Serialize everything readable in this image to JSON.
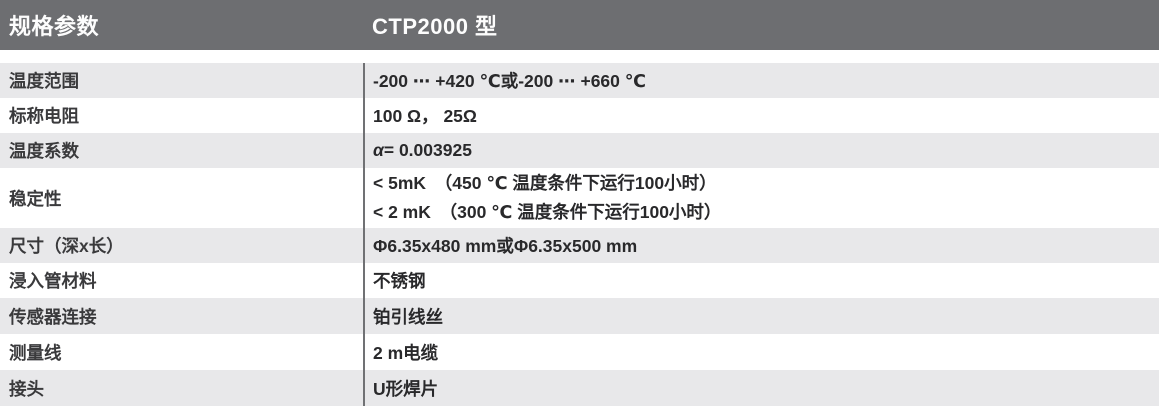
{
  "header": {
    "left_title": "规格参数",
    "right_title": "CTP2000 型"
  },
  "table": {
    "rows": [
      {
        "label": "温度范围",
        "value": "-200 ⋯ +420 ℃或-200 ⋯ +660 ℃"
      },
      {
        "label": "标称电阻",
        "value": "100 Ω， 25Ω"
      },
      {
        "label": "温度系数",
        "alpha": "α",
        "value": "= 0.003925"
      },
      {
        "label": "稳定性",
        "value": "< 5mK　（450 ℃ 温度条件下运行100小时）\n< 2 mK　（300 ℃ 温度条件下运行100小时）"
      },
      {
        "label": "尺寸（深x长）",
        "value": "Φ6.35x480 mm或Φ6.35x500 mm"
      },
      {
        "label": "浸入管材料",
        "value": "不锈钢"
      },
      {
        "label": "传感器连接",
        "value": "铂引线丝"
      },
      {
        "label": "测量线",
        "value": "2 m电缆"
      },
      {
        "label": "接头",
        "value": "U形焊片"
      }
    ]
  },
  "colors": {
    "header_bg": "#6d6e71",
    "header_text": "#fdfdfd",
    "stripe_gray": "#e8e8ea",
    "row_white": "#ffffff",
    "divider": "#707174",
    "text": "#29292b"
  }
}
